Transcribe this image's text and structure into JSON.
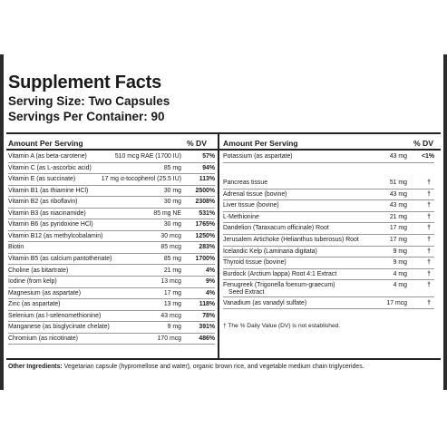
{
  "title": "Supplement Facts",
  "serving_size": "Serving Size: Two Capsules",
  "servings_per_container": "Servings Per Container: 90",
  "left": {
    "header_amount": "Amount Per Serving",
    "header_dv": "% DV",
    "rows": [
      {
        "name": "Vitamin A (as beta-carotene)",
        "amount": "510 mcg RAE (1700 IU)",
        "dv": "57%"
      },
      {
        "name": "Vitamin C (as L-ascorbic acid)",
        "amount": "85 mg",
        "dv": "94%"
      },
      {
        "name": "Vitamin E (as succinate)",
        "amount": "17 mg α-tocopherol (25.5 IU)",
        "dv": "113%"
      },
      {
        "name": "Vitamin B1 (as thiamine HCl)",
        "amount": "30 mg",
        "dv": "2500%"
      },
      {
        "name": "Vitamin B2 (as riboflavin)",
        "amount": "30 mg",
        "dv": "2308%"
      },
      {
        "name": "Vitamin B3 (as niacinamide)",
        "amount": "85 mg NE",
        "dv": "531%"
      },
      {
        "name": "Vitamin B6 (as pyridoxine HCl)",
        "amount": "30 mg",
        "dv": "1765%"
      },
      {
        "name": "Vitamin B12 (as methylcobalamin)",
        "amount": "30 mcg",
        "dv": "1250%"
      },
      {
        "name": "Biotin",
        "amount": "85 mcg",
        "dv": "283%"
      },
      {
        "name": "Vitamin B5 (as calcium pantothenate)",
        "amount": "85 mg",
        "dv": "1700%"
      },
      {
        "name": "Choline (as bitartrate)",
        "amount": "21 mg",
        "dv": "4%"
      },
      {
        "name": "Iodine (from kelp)",
        "amount": "13 mcg",
        "dv": "9%"
      },
      {
        "name": "Magnesium (as aspartate)",
        "amount": "17 mg",
        "dv": "4%"
      },
      {
        "name": "Zinc (as aspartate)",
        "amount": "13 mg",
        "dv": "118%"
      },
      {
        "name": "Selenium (as l-selenomethionine)",
        "amount": "43 mcg",
        "dv": "78%"
      },
      {
        "name": "Manganese (as bisglycinate chelate)",
        "amount": "9 mg",
        "dv": "391%"
      },
      {
        "name": "Chromium (as nicotinate)",
        "amount": "170 mcg",
        "dv": "486%"
      }
    ]
  },
  "right": {
    "header_amount": "Amount Per Serving",
    "header_dv": "% DV",
    "potassium": {
      "name": "Potassium (as aspartate)",
      "amount": "43 mg",
      "dv": "<1%"
    },
    "rows": [
      {
        "name": "Pancreas tissue",
        "amount": "51 mg",
        "dv": "†"
      },
      {
        "name": "Adrenal tissue (bovine)",
        "amount": "43 mg",
        "dv": "†"
      },
      {
        "name": "Liver tissue (bovine)",
        "amount": "43 mg",
        "dv": "†"
      },
      {
        "name": "L-Methionine",
        "amount": "21 mg",
        "dv": "†"
      },
      {
        "name": "Dandelion (Taraxacum officinale) Root",
        "amount": "17 mg",
        "dv": "†"
      },
      {
        "name": "Jerusalem Artichoke (Helianthus tuberosus) Root",
        "amount": "17 mg",
        "dv": "†"
      },
      {
        "name": "Icelandic Kelp (Laminaria digitata)",
        "amount": "9 mg",
        "dv": "†"
      },
      {
        "name": "Thyroid tissue (bovine)",
        "amount": "9 mg",
        "dv": "†"
      },
      {
        "name": "Burdock (Arctium lappa) Root 4:1 Extract",
        "amount": "4 mg",
        "dv": "†"
      },
      {
        "name": "Fenugreek (Trigonella foenum-graecum)",
        "name2": "Seed Extract",
        "amount": "4 mg",
        "dv": "†"
      },
      {
        "name": "Vanadium (as vanadyl sulfate)",
        "amount": "17 mcg",
        "dv": "†"
      }
    ],
    "footnote": "† The % Daily Value (DV) is not established."
  },
  "other_ingredients_label": "Other Ingredients:",
  "other_ingredients_text": " Vegetarian capsule (hypromellose and water), organic brown rice, and vegetable medium chain triglycerides."
}
